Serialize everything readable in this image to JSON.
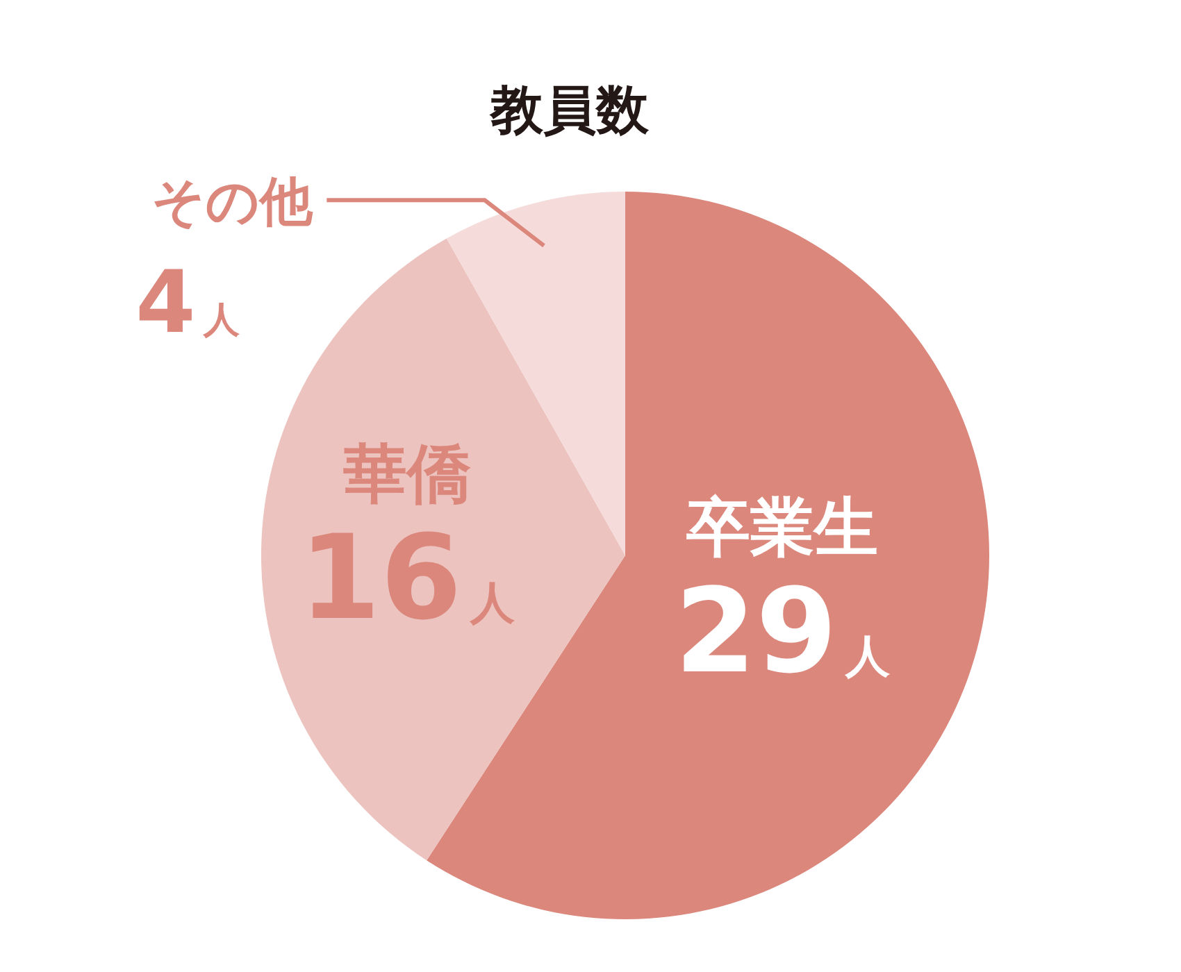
{
  "chart_data": {
    "type": "pie",
    "title": "教員数",
    "categories": [
      "卒業生",
      "華僑",
      "その他"
    ],
    "values": [
      29,
      16,
      4
    ],
    "colors": [
      "#db877c",
      "#ecc3bf",
      "#f5dcdb"
    ],
    "value_labels": [
      "29人",
      "16人",
      "4人"
    ]
  }
}
